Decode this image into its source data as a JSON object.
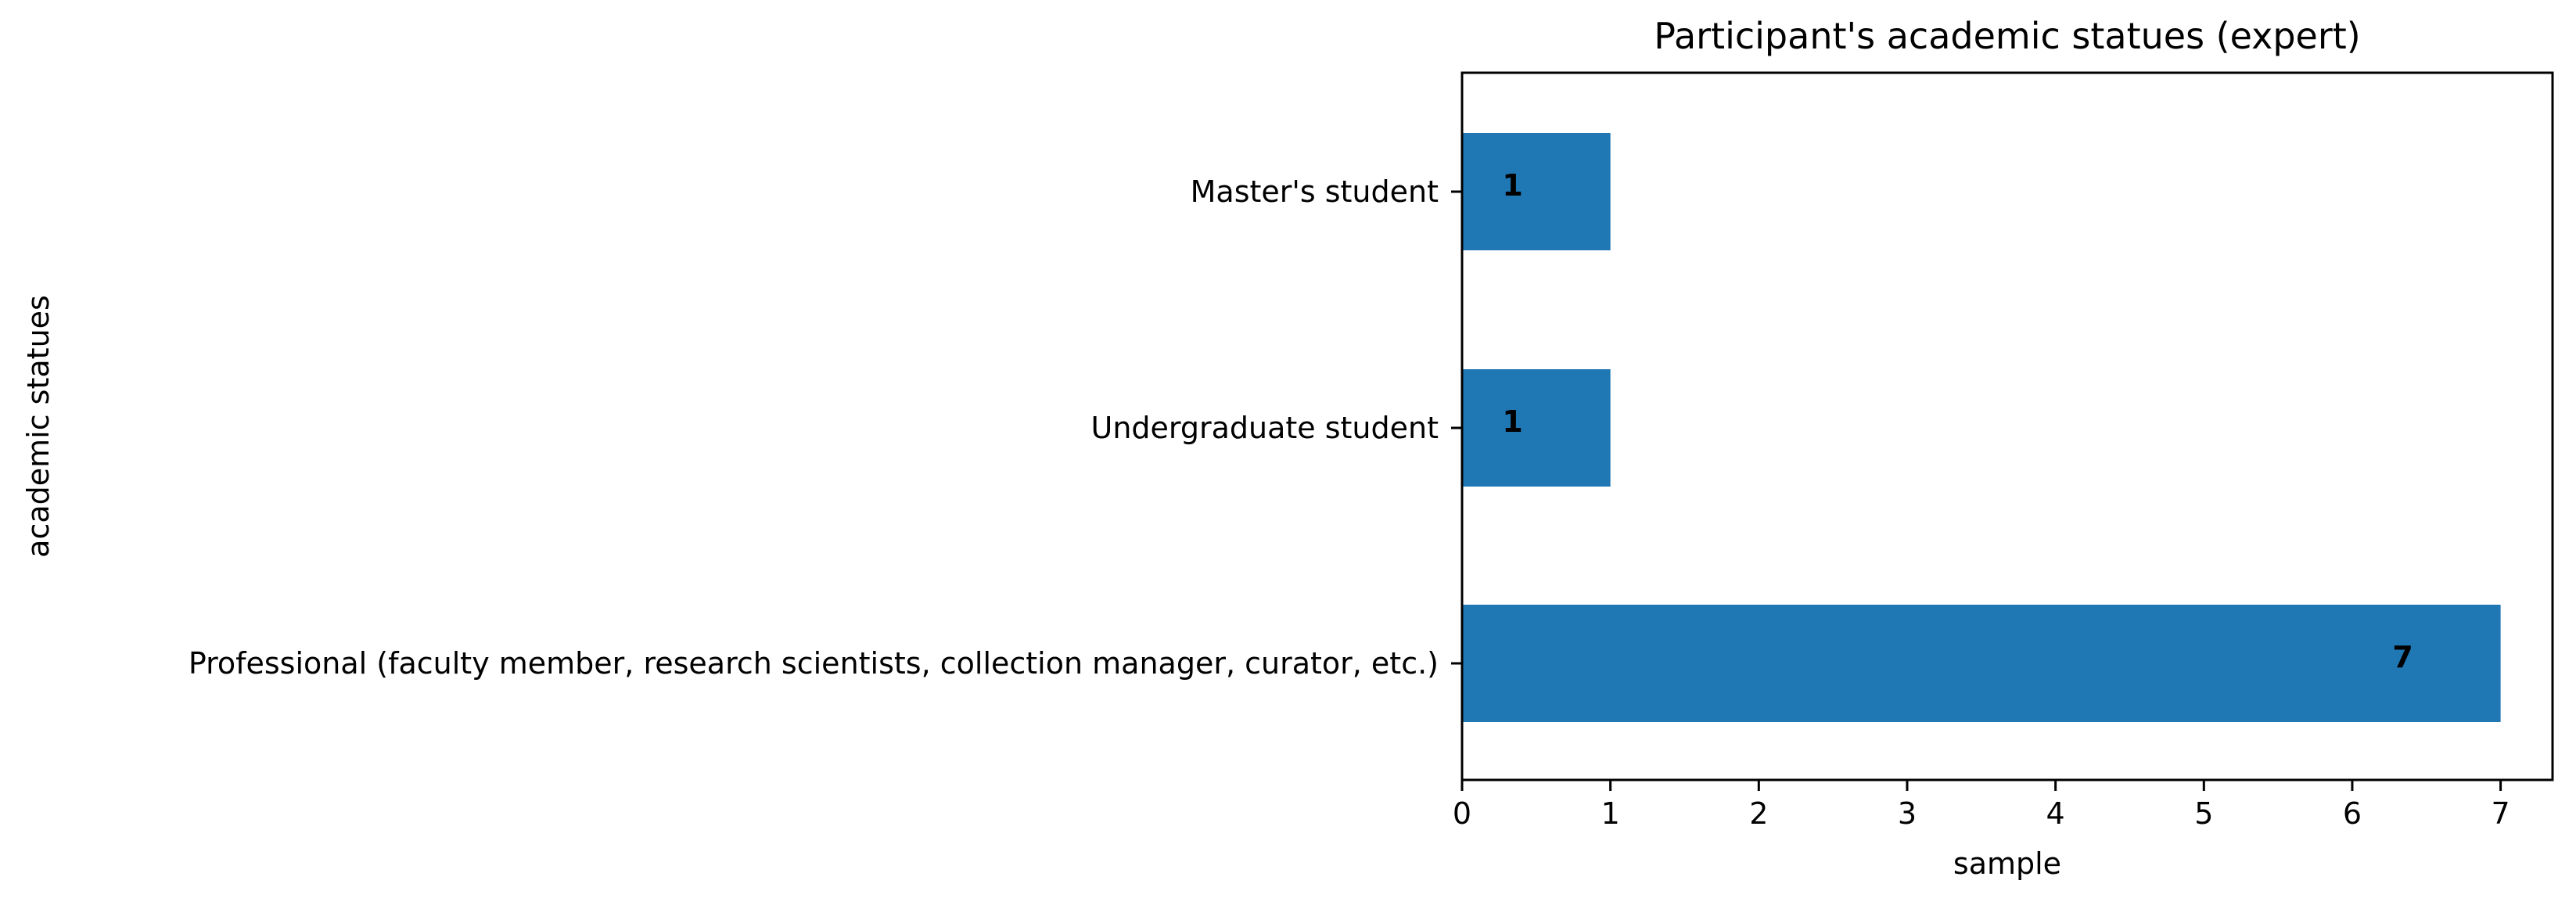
{
  "chart_data": {
    "type": "bar",
    "orientation": "horizontal",
    "title": "Participant's academic statues (expert)",
    "xlabel": "sample",
    "ylabel": "academic statues",
    "categories": [
      "Master's student",
      "Undergraduate student",
      "Professional (faculty member, research scientists, collection manager, curator, etc.)"
    ],
    "values": [
      1,
      1,
      7
    ],
    "data_labels": [
      "1",
      "1",
      "7"
    ],
    "xlim": [
      0,
      7.35
    ],
    "xticks": [
      0,
      1,
      2,
      3,
      4,
      5,
      6,
      7
    ],
    "xtick_labels": [
      "0",
      "1",
      "2",
      "3",
      "4",
      "5",
      "6",
      "7"
    ],
    "grid": false,
    "legend": "none",
    "bar_color": "#1f77b4"
  }
}
